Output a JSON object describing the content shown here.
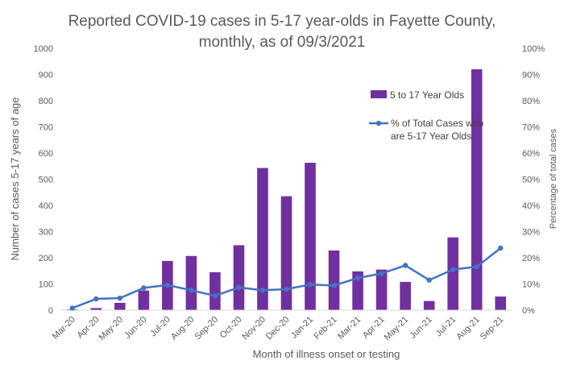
{
  "chart_data": {
    "type": "bar",
    "title_lines": [
      "Reported COVID-19 cases in 5-17 year-olds in Fayette County,",
      "monthly, as of 09/3/2021"
    ],
    "xlabel": "Month of illness onset or testing",
    "ylabel": "Number of cases 5-17 years of age",
    "y2label": "Percentage of total cases",
    "ylim": [
      0,
      1000
    ],
    "y_ticks": [
      "0",
      "100",
      "200",
      "300",
      "400",
      "500",
      "600",
      "700",
      "800",
      "900",
      "1000"
    ],
    "y2lim": [
      0,
      100
    ],
    "y2_ticks": [
      "0%",
      "10%",
      "20%",
      "30%",
      "40%",
      "50%",
      "60%",
      "70%",
      "80%",
      "90%",
      "100%"
    ],
    "categories": [
      "Mar-20",
      "Apr-20",
      "May-20",
      "Jun-20",
      "Jul-20",
      "Aug-20",
      "Sep-20",
      "Oct-20",
      "Nov-20",
      "Dec-20",
      "Jan-21",
      "Feb-21",
      "Mar-21",
      "Apr-21",
      "May-21",
      "Jun-21",
      "Jul-21",
      "Aug-21",
      "Sep-21"
    ],
    "grid": false,
    "legend_position": "top-right",
    "colors": {
      "bars": "#7030a0",
      "line": "#4472c4"
    },
    "series": [
      {
        "name": "5 to 17 Year Olds",
        "kind": "bar",
        "axis": "left",
        "values": [
          3,
          8,
          28,
          75,
          188,
          207,
          145,
          248,
          543,
          435,
          563,
          228,
          148,
          155,
          108,
          35,
          278,
          920,
          52
        ]
      },
      {
        "name": "% of Total Cases who are 5-17 Year Olds",
        "kind": "line",
        "axis": "right",
        "legend_lines": [
          "% of Total Cases who",
          "are 5-17 Year Olds"
        ],
        "values": [
          0.8,
          4.3,
          4.6,
          8.5,
          9.6,
          7.6,
          5.5,
          8.7,
          7.6,
          8.0,
          9.8,
          9.4,
          12.3,
          14.0,
          17.1,
          11.5,
          15.5,
          16.6,
          23.7
        ]
      }
    ]
  }
}
